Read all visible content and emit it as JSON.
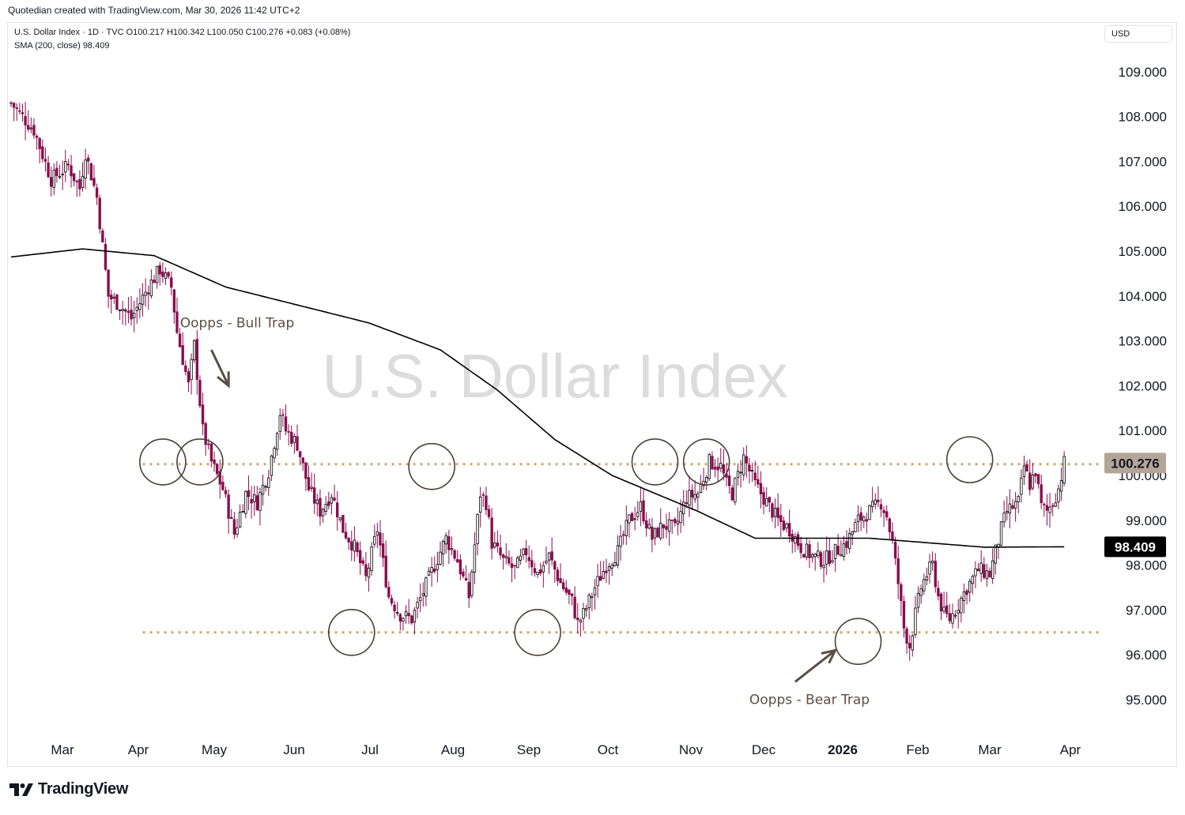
{
  "header": {
    "attribution": "Quotedian created with TradingView.com, Mar 30, 2026 11:42 UTC+2"
  },
  "legend": {
    "symbol_line": "U.S. Dollar Index · 1D · TVC  O100.217  H100.342  L100.050  C100.276  +0.083 (+0.08%)",
    "sma_line": "SMA (200, close)  98.409"
  },
  "currency_label": "USD",
  "footer": {
    "brand": "TradingView"
  },
  "chart_data": {
    "type": "candlestick",
    "title": "U.S. Dollar Index",
    "interval": "1D",
    "watermark": "U.S. Dollar Index",
    "ylim": [
      94.2,
      110.0
    ],
    "y_ticks": [
      "95.000",
      "96.000",
      "97.000",
      "98.000",
      "99.000",
      "100.000",
      "101.000",
      "102.000",
      "103.000",
      "104.000",
      "105.000",
      "106.000",
      "107.000",
      "108.000",
      "109.000"
    ],
    "x_ticks": [
      {
        "label": "Mar",
        "bold": false
      },
      {
        "label": "Apr",
        "bold": false
      },
      {
        "label": "May",
        "bold": false
      },
      {
        "label": "Jun",
        "bold": false
      },
      {
        "label": "Jul",
        "bold": false
      },
      {
        "label": "Aug",
        "bold": false
      },
      {
        "label": "Sep",
        "bold": false
      },
      {
        "label": "Oct",
        "bold": false
      },
      {
        "label": "Nov",
        "bold": false
      },
      {
        "label": "Dec",
        "bold": false
      },
      {
        "label": "2026",
        "bold": true
      },
      {
        "label": "Feb",
        "bold": false
      },
      {
        "label": "Mar",
        "bold": false
      },
      {
        "label": "Apr",
        "bold": false
      }
    ],
    "price_path": [
      [
        0,
        108.3
      ],
      [
        8,
        107.7
      ],
      [
        14,
        106.6
      ],
      [
        20,
        106.9
      ],
      [
        24,
        106.4
      ],
      [
        26,
        107.2
      ],
      [
        30,
        106.2
      ],
      [
        34,
        104.0
      ],
      [
        38,
        103.8
      ],
      [
        42,
        103.5
      ],
      [
        48,
        104.2
      ],
      [
        52,
        104.6
      ],
      [
        56,
        104.2
      ],
      [
        58,
        103.2
      ],
      [
        62,
        102.0
      ],
      [
        64,
        102.9
      ],
      [
        67,
        101.0
      ],
      [
        70,
        100.3
      ],
      [
        74,
        99.7
      ],
      [
        78,
        98.7
      ],
      [
        82,
        99.6
      ],
      [
        86,
        99.4
      ],
      [
        90,
        100.1
      ],
      [
        94,
        101.4
      ],
      [
        96,
        101.0
      ],
      [
        100,
        100.7
      ],
      [
        104,
        99.7
      ],
      [
        108,
        99.2
      ],
      [
        112,
        99.6
      ],
      [
        116,
        98.8
      ],
      [
        120,
        98.4
      ],
      [
        124,
        97.7
      ],
      [
        128,
        98.8
      ],
      [
        132,
        97.3
      ],
      [
        136,
        96.9
      ],
      [
        140,
        96.8
      ],
      [
        144,
        97.4
      ],
      [
        148,
        98.0
      ],
      [
        152,
        98.6
      ],
      [
        156,
        98.1
      ],
      [
        160,
        97.3
      ],
      [
        164,
        99.6
      ],
      [
        166,
        99.4
      ],
      [
        168,
        98.5
      ],
      [
        172,
        98.1
      ],
      [
        176,
        97.9
      ],
      [
        180,
        98.3
      ],
      [
        184,
        97.8
      ],
      [
        188,
        98.2
      ],
      [
        192,
        97.6
      ],
      [
        196,
        97.2
      ],
      [
        198,
        96.7
      ],
      [
        200,
        96.9
      ],
      [
        204,
        97.5
      ],
      [
        208,
        98.0
      ],
      [
        212,
        98.3
      ],
      [
        216,
        99.0
      ],
      [
        220,
        99.3
      ],
      [
        224,
        98.6
      ],
      [
        228,
        98.9
      ],
      [
        232,
        98.8
      ],
      [
        236,
        99.5
      ],
      [
        240,
        99.6
      ],
      [
        244,
        100.3
      ],
      [
        248,
        100.2
      ],
      [
        250,
        99.8
      ],
      [
        252,
        99.6
      ],
      [
        256,
        100.4
      ],
      [
        260,
        99.8
      ],
      [
        264,
        99.4
      ],
      [
        268,
        99.0
      ],
      [
        272,
        98.8
      ],
      [
        276,
        98.4
      ],
      [
        280,
        98.2
      ],
      [
        284,
        98.1
      ],
      [
        288,
        98.3
      ],
      [
        292,
        98.5
      ],
      [
        296,
        99.0
      ],
      [
        300,
        99.2
      ],
      [
        304,
        99.4
      ],
      [
        306,
        99.1
      ],
      [
        308,
        98.5
      ],
      [
        310,
        97.6
      ],
      [
        312,
        96.6
      ],
      [
        314,
        96.2
      ],
      [
        316,
        96.9
      ],
      [
        318,
        97.5
      ],
      [
        320,
        97.8
      ],
      [
        322,
        98.0
      ],
      [
        324,
        97.3
      ],
      [
        326,
        96.9
      ],
      [
        328,
        96.8
      ],
      [
        330,
        97.0
      ],
      [
        334,
        97.5
      ],
      [
        338,
        97.9
      ],
      [
        342,
        97.8
      ],
      [
        346,
        98.8
      ],
      [
        348,
        99.2
      ],
      [
        352,
        99.4
      ],
      [
        354,
        100.2
      ],
      [
        356,
        99.8
      ],
      [
        358,
        100.1
      ],
      [
        360,
        99.3
      ],
      [
        362,
        99.2
      ],
      [
        364,
        99.4
      ],
      [
        366,
        99.7
      ],
      [
        368,
        100.276
      ]
    ],
    "sma200": {
      "name": "SMA (200, close)",
      "value_label": "98.409",
      "path": [
        [
          0,
          104.87
        ],
        [
          25,
          105.05
        ],
        [
          50,
          104.9
        ],
        [
          75,
          104.2
        ],
        [
          100,
          103.8
        ],
        [
          125,
          103.4
        ],
        [
          150,
          102.8
        ],
        [
          170,
          101.9
        ],
        [
          190,
          100.8
        ],
        [
          210,
          100.0
        ],
        [
          225,
          99.6
        ],
        [
          240,
          99.2
        ],
        [
          260,
          98.6
        ],
        [
          280,
          98.6
        ],
        [
          300,
          98.6
        ],
        [
          320,
          98.5
        ],
        [
          340,
          98.4
        ],
        [
          368,
          98.409
        ]
      ]
    },
    "last_price": {
      "value": 100.276,
      "label": "100.276"
    },
    "horizontal_levels": [
      {
        "name": "resistance",
        "value": 100.25,
        "from_bar": 46
      },
      {
        "name": "support",
        "value": 96.5,
        "from_bar": 46
      }
    ],
    "circled_points": [
      {
        "bar": 53,
        "price": 100.3
      },
      {
        "bar": 66,
        "price": 100.3
      },
      {
        "bar": 119,
        "price": 96.5
      },
      {
        "bar": 147,
        "price": 100.2
      },
      {
        "bar": 184,
        "price": 96.5
      },
      {
        "bar": 225,
        "price": 100.3
      },
      {
        "bar": 243,
        "price": 100.3
      },
      {
        "bar": 296,
        "price": 96.3
      },
      {
        "bar": 335,
        "price": 100.35
      }
    ],
    "annotations": [
      {
        "text": "Oopps - Bull Trap",
        "price": 103.3,
        "bar": 79,
        "arrow_to": [
          76,
          102.0
        ],
        "arrow_from": [
          70,
          102.8
        ]
      },
      {
        "text": "Oopps - Bear Trap",
        "price": 94.9,
        "bar": 279,
        "arrow_to": [
          288,
          96.1
        ],
        "arrow_from": [
          274,
          95.4
        ]
      }
    ],
    "colors": {
      "up": "#000000",
      "down": "#880e4f",
      "wick": "#880e4f",
      "sma": "#000000",
      "level": "#c9a96e",
      "circle": "#4a4038",
      "last_price_bg": "#b3a598",
      "sma_bg": "#000000",
      "annotation": "#5a4f44"
    }
  }
}
